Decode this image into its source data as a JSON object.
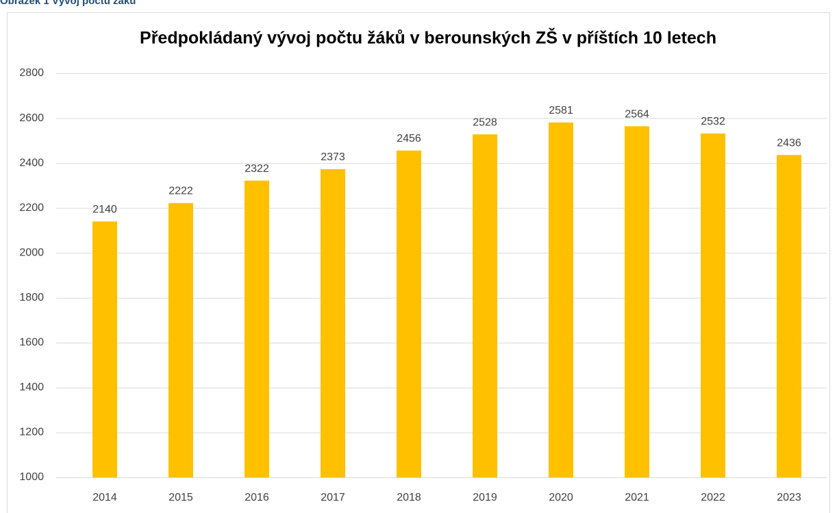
{
  "caption": "Obrázek 1 Vývoj počtu žáků",
  "chart_data": {
    "type": "bar",
    "title": "Předpokládaný vývoj počtu žáků v berounských ZŠ v příštích 10 letech",
    "categories": [
      "2014",
      "2015",
      "2016",
      "2017",
      "2018",
      "2019",
      "2020",
      "2021",
      "2022",
      "2023"
    ],
    "values": [
      2140,
      2222,
      2322,
      2373,
      2456,
      2528,
      2581,
      2564,
      2532,
      2436
    ],
    "color": "#ffc000",
    "ylim": [
      1000,
      2800
    ],
    "yticks": [
      1000,
      1200,
      1400,
      1600,
      1800,
      2000,
      2200,
      2400,
      2600,
      2800
    ],
    "grid": true
  }
}
